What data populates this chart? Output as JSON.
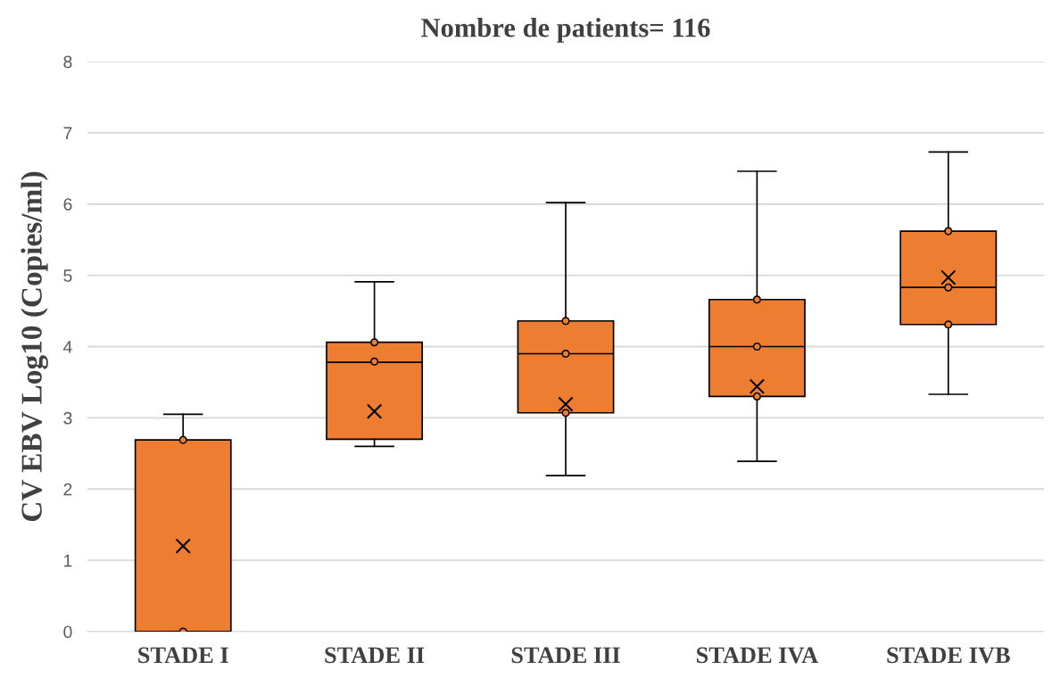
{
  "chart_data": {
    "type": "box",
    "title": "Nombre de patients= 116",
    "ylabel": "CV EBV Log10 (Copies/ml)",
    "categories": [
      "STADE I",
      "STADE II",
      "STADE III",
      "STADE IVA",
      "STADE IVB"
    ],
    "color": "#ed7d31",
    "boxes": [
      {
        "low": 0,
        "q1": 0,
        "median": 0,
        "q3": 2.69,
        "high": 3.05,
        "mean": 1.2
      },
      {
        "low": 2.6,
        "q1": 2.7,
        "median": 3.78,
        "q3": 4.06,
        "high": 4.91,
        "mean": 3.09
      },
      {
        "low": 2.19,
        "q1": 3.07,
        "median": 3.9,
        "q3": 4.36,
        "high": 6.02,
        "mean": 3.19
      },
      {
        "low": 2.39,
        "q1": 3.3,
        "median": 4.0,
        "q3": 4.66,
        "high": 6.46,
        "mean": 3.44
      },
      {
        "low": 3.33,
        "q1": 4.31,
        "median": 4.83,
        "q3": 5.62,
        "high": 6.73,
        "mean": 4.97
      }
    ],
    "series": [
      {
        "type": "scatter",
        "color": "#ed7d31",
        "marker": "circle",
        "x": [
          "STADE I",
          "STADE I",
          "STADE II",
          "STADE II",
          "STADE III",
          "STADE III",
          "STADE III",
          "STADE IVA",
          "STADE IVA",
          "STADE IVA",
          "STADE IVB",
          "STADE IVB",
          "STADE IVB"
        ],
        "values": [
          0,
          2.69,
          4.06,
          3.79,
          4.36,
          3.9,
          3.07,
          4.66,
          4.0,
          3.3,
          5.62,
          4.83,
          4.31
        ]
      }
    ],
    "ylim": [
      0,
      8
    ],
    "yticks": [
      0,
      1,
      2,
      3,
      4,
      5,
      6,
      7,
      8
    ],
    "grid": "y"
  }
}
